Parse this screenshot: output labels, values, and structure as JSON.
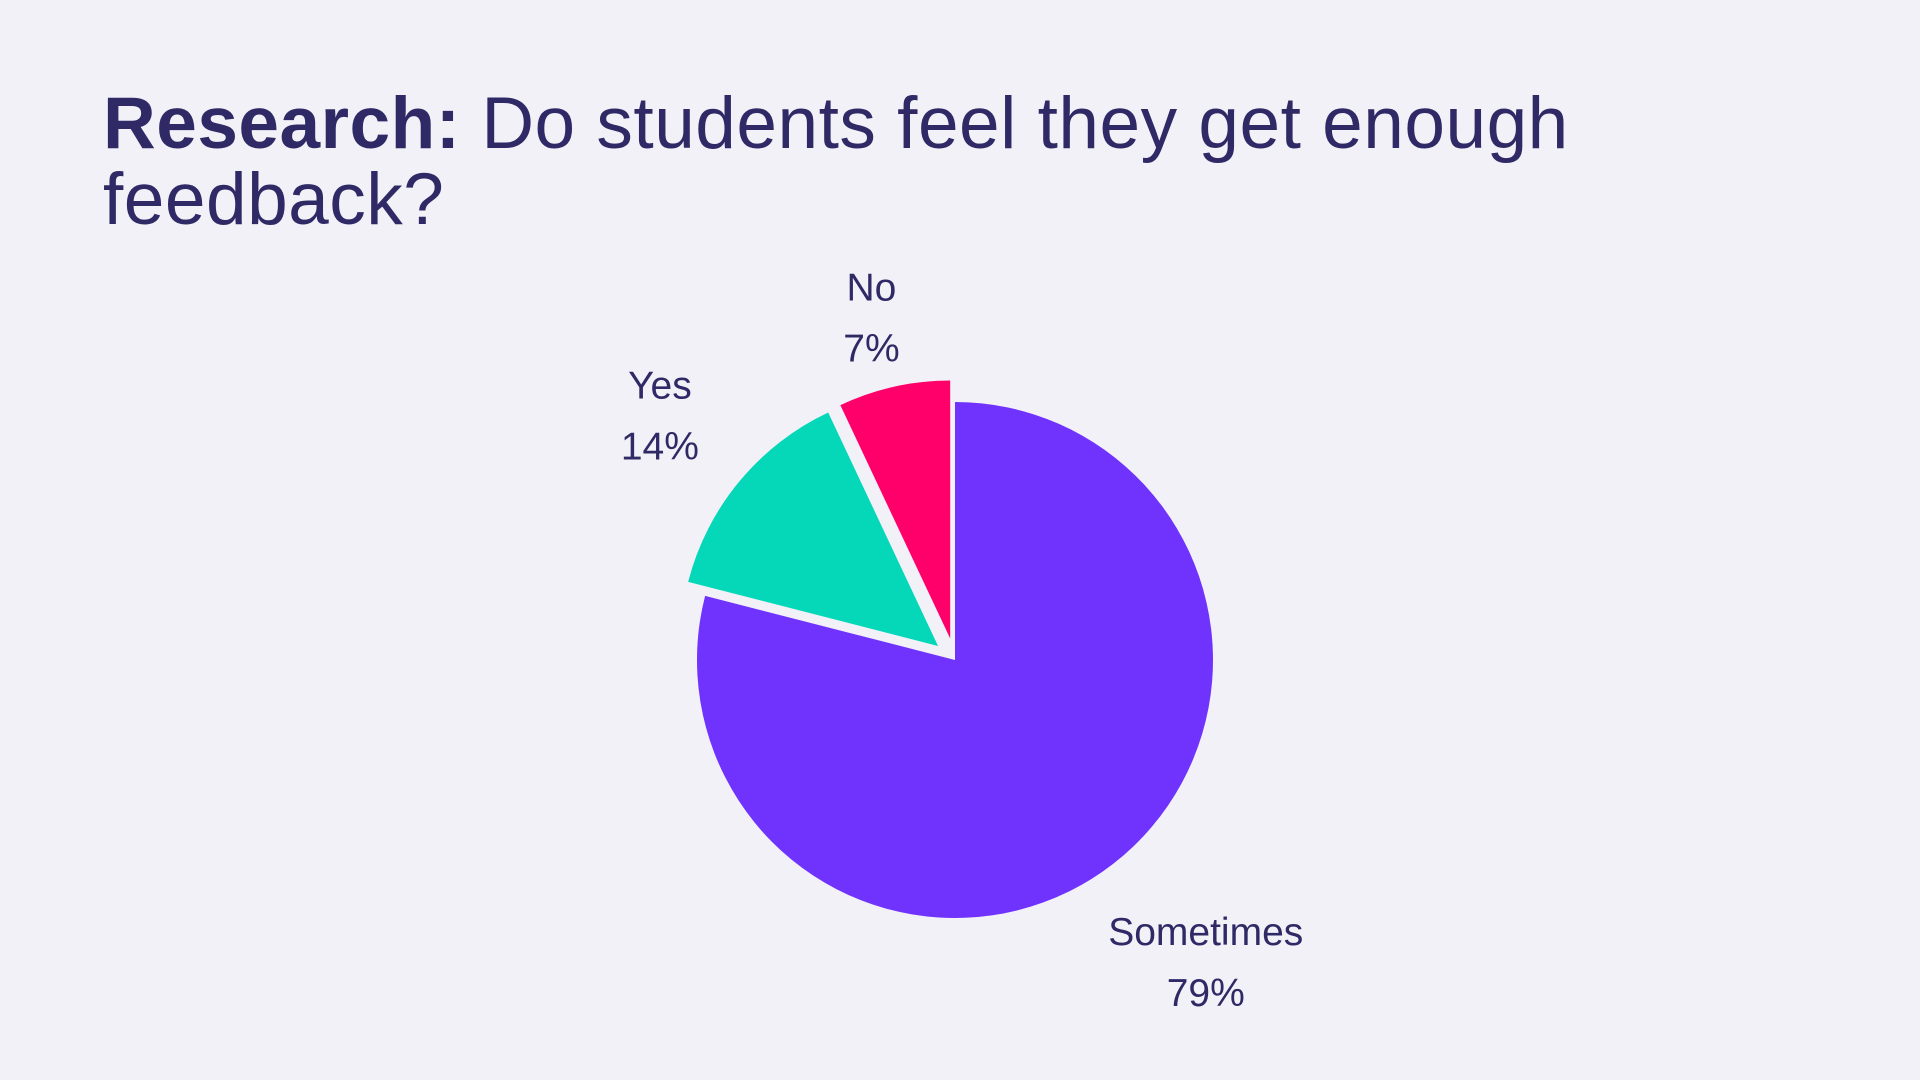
{
  "title": {
    "lead": "Research:",
    "text": "Do students feel they get enough feedback?"
  },
  "chart_data": {
    "type": "pie",
    "start": "12 o'clock",
    "direction": "clockwise",
    "exploded": true,
    "slices": [
      {
        "label": "Sometimes",
        "value": 79,
        "value_label": "79%",
        "color": "#7033fd"
      },
      {
        "label": "Yes",
        "value": 14,
        "value_label": "14%",
        "color": "#05d7b9"
      },
      {
        "label": "No",
        "value": 7,
        "value_label": "7%",
        "color": "#ff006b"
      }
    ]
  }
}
